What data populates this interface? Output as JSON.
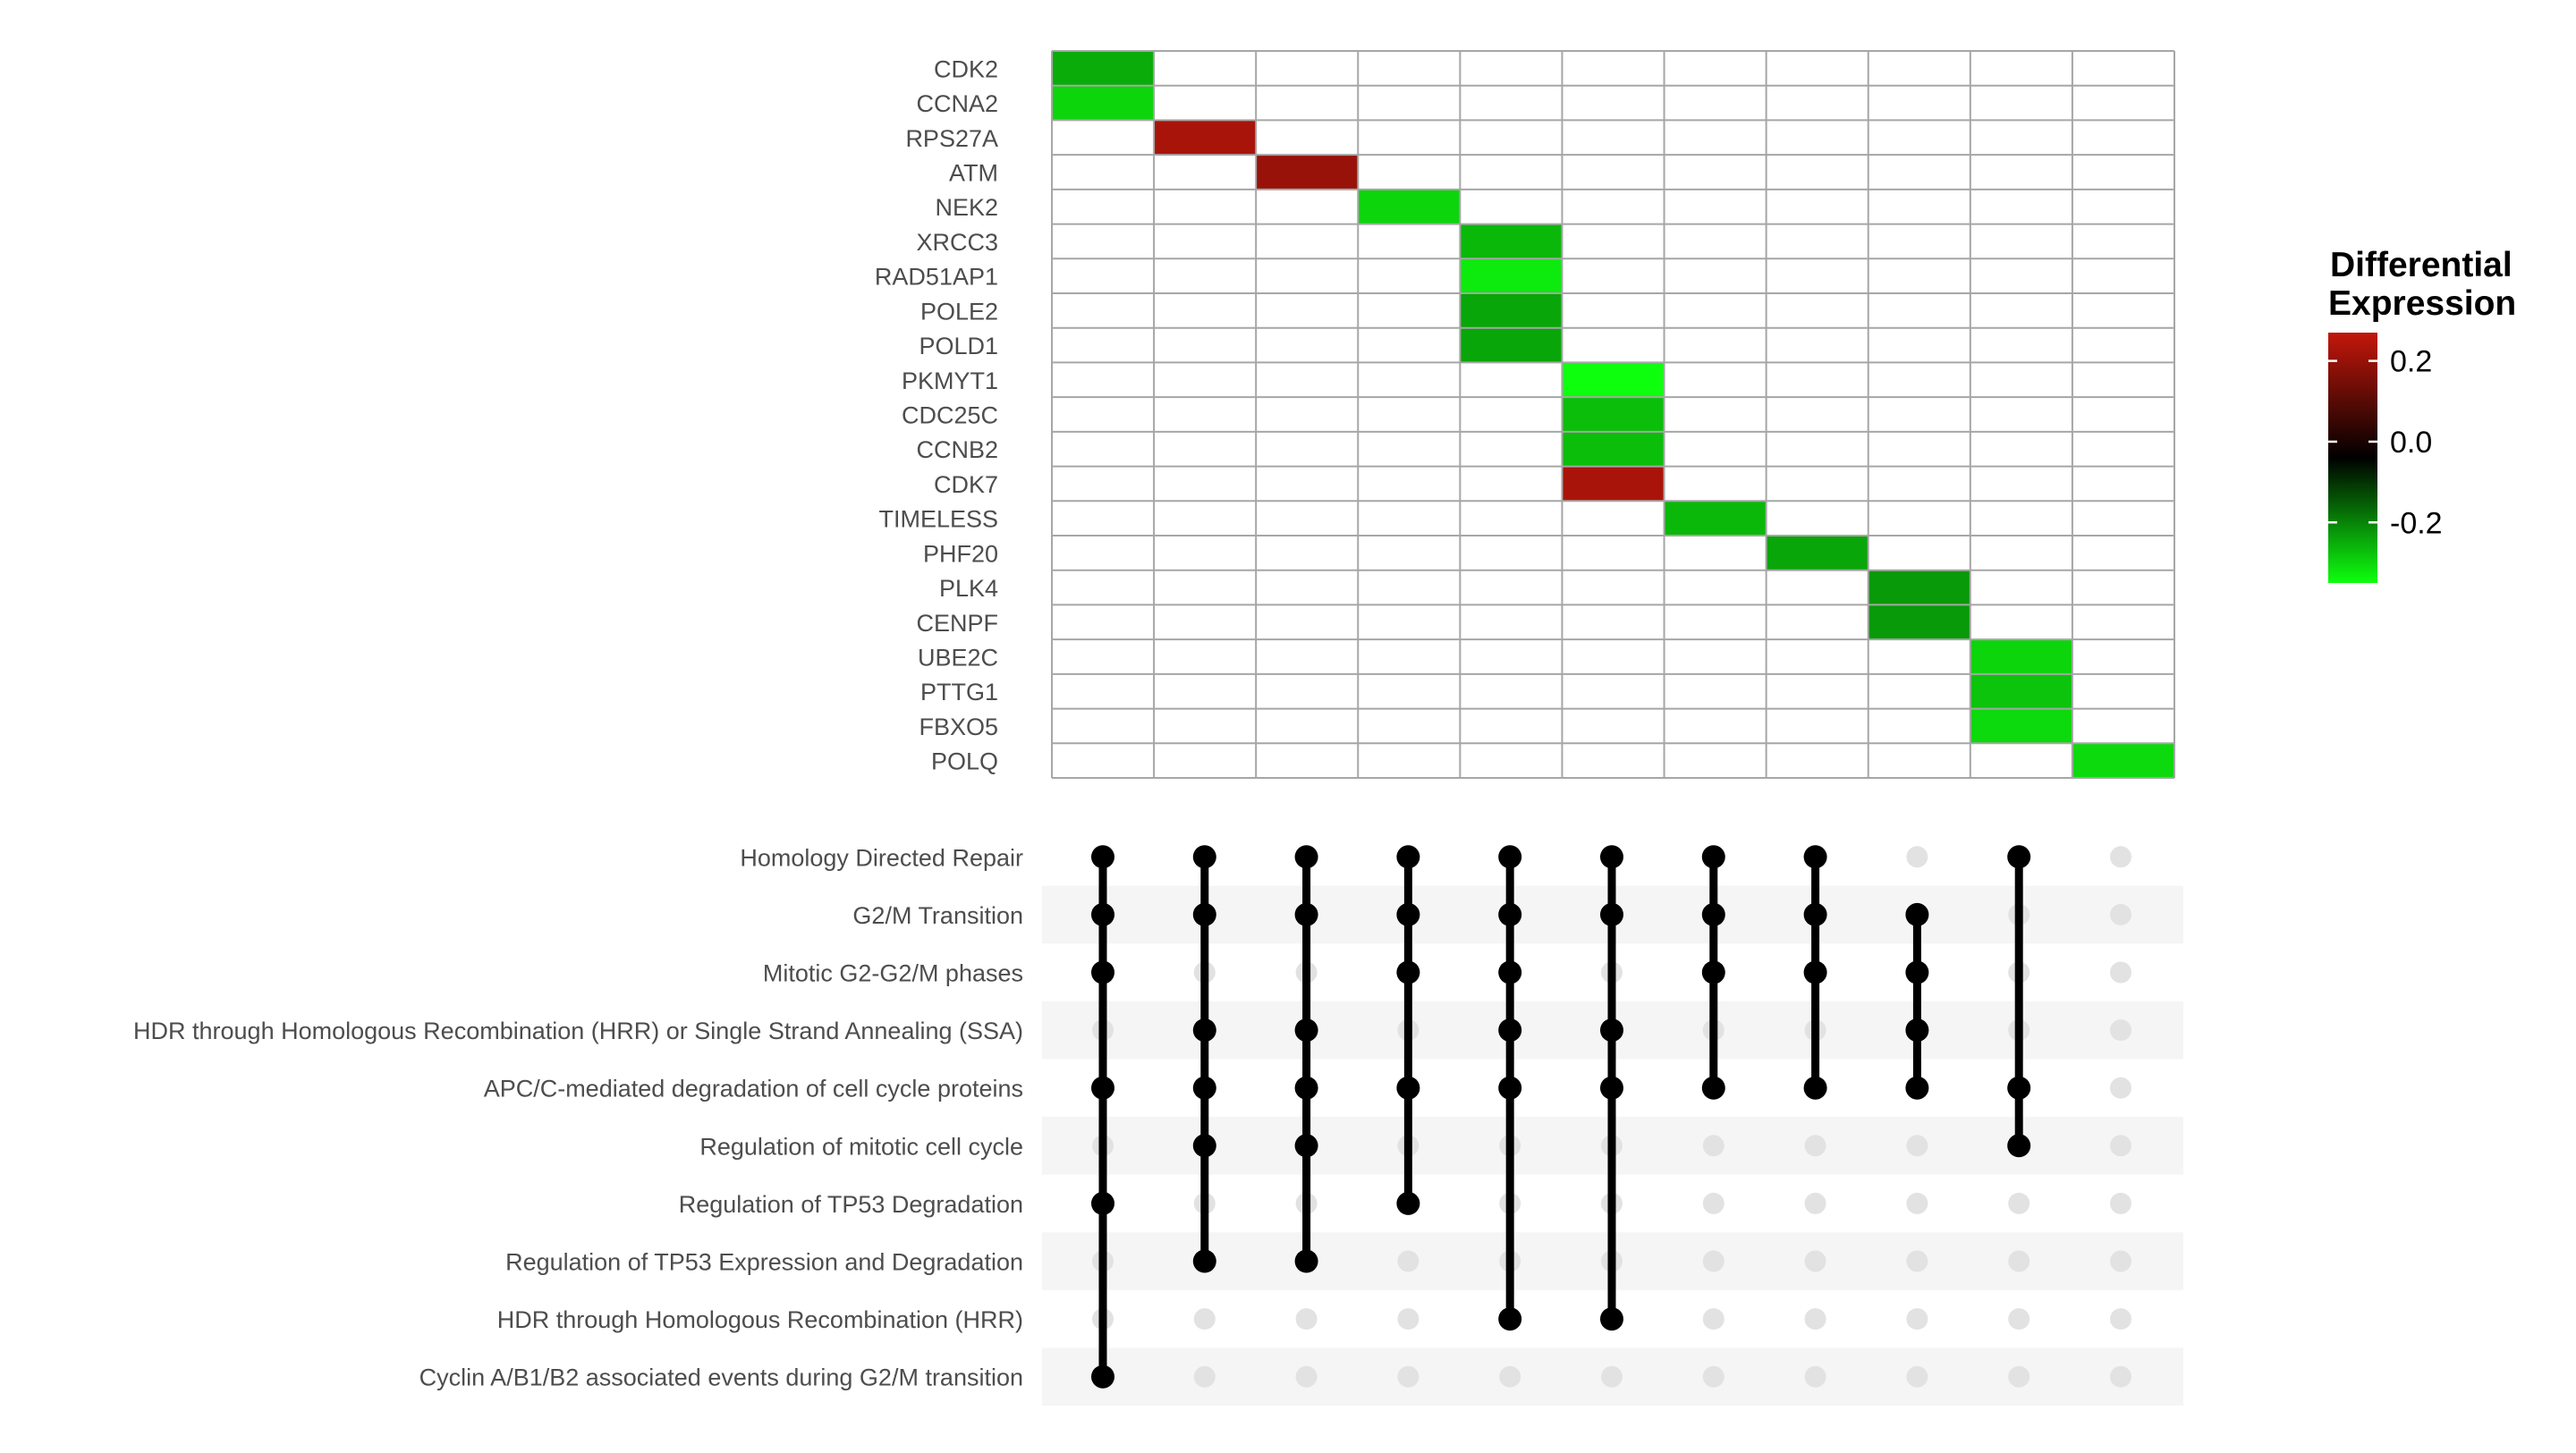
{
  "chart_data": [
    {
      "type": "heatmap",
      "genes": [
        "CDK2",
        "CCNA2",
        "RPS27A",
        "ATM",
        "NEK2",
        "XRCC3",
        "RAD51AP1",
        "POLE2",
        "POLD1",
        "PKMYT1",
        "CDC25C",
        "CCNB2",
        "CDK7",
        "TIMELESS",
        "PHF20",
        "PLK4",
        "CENPF",
        "UBE2C",
        "PTTG1",
        "FBXO5",
        "POLQ"
      ],
      "num_columns": 11,
      "cells": [
        {
          "gene": "CDK2",
          "column": 1,
          "value": -0.2
        },
        {
          "gene": "CCNA2",
          "column": 1,
          "value": -0.27
        },
        {
          "gene": "RPS27A",
          "column": 2,
          "value": 0.22
        },
        {
          "gene": "ATM",
          "column": 3,
          "value": 0.19
        },
        {
          "gene": "NEK2",
          "column": 4,
          "value": -0.27
        },
        {
          "gene": "XRCC3",
          "column": 5,
          "value": -0.22
        },
        {
          "gene": "RAD51AP1",
          "column": 5,
          "value": -0.31
        },
        {
          "gene": "POLE2",
          "column": 5,
          "value": -0.19
        },
        {
          "gene": "POLD1",
          "column": 5,
          "value": -0.19
        },
        {
          "gene": "PKMYT1",
          "column": 6,
          "value": -0.35
        },
        {
          "gene": "CDC25C",
          "column": 6,
          "value": -0.23
        },
        {
          "gene": "CCNB2",
          "column": 6,
          "value": -0.23
        },
        {
          "gene": "CDK7",
          "column": 6,
          "value": 0.22
        },
        {
          "gene": "TIMELESS",
          "column": 7,
          "value": -0.22
        },
        {
          "gene": "PHF20",
          "column": 8,
          "value": -0.19
        },
        {
          "gene": "PLK4",
          "column": 9,
          "value": -0.17
        },
        {
          "gene": "CENPF",
          "column": 9,
          "value": -0.17
        },
        {
          "gene": "UBE2C",
          "column": 10,
          "value": -0.27
        },
        {
          "gene": "PTTG1",
          "column": 10,
          "value": -0.24
        },
        {
          "gene": "FBXO5",
          "column": 10,
          "value": -0.28
        },
        {
          "gene": "POLQ",
          "column": 11,
          "value": -0.28
        }
      ],
      "legend": {
        "title_lines": [
          "Differential",
          "Expression"
        ],
        "ticks": [
          0.2,
          0.0,
          -0.2
        ],
        "tick_labels": [
          "0.2",
          "0.0",
          "-0.2"
        ],
        "range": [
          -0.35,
          0.27
        ],
        "colors": {
          "high": "#c3170b",
          "mid": "#000000",
          "low": "#0eff0e"
        }
      }
    },
    {
      "type": "upset-matrix",
      "pathways": [
        "Homology Directed Repair",
        "G2/M Transition",
        "Mitotic G2-G2/M phases",
        "HDR through Homologous Recombination (HRR) or Single Strand Annealing (SSA)",
        "APC/C-mediated degradation of cell cycle proteins",
        "Regulation of mitotic cell cycle",
        "Regulation of TP53 Degradation",
        "Regulation of TP53 Expression and Degradation",
        "HDR through Homologous Recombination (HRR)",
        "Cyclin A/B1/B2 associated events during G2/M transition"
      ],
      "membership": [
        [
          1,
          2,
          3,
          4,
          5,
          6,
          7,
          8,
          10
        ],
        [
          1,
          2,
          3,
          4,
          5,
          6,
          7,
          8,
          9
        ],
        [
          1,
          4,
          5,
          7,
          8,
          9
        ],
        [
          2,
          3,
          5,
          6,
          9
        ],
        [
          1,
          2,
          3,
          4,
          5,
          6,
          7,
          8,
          9,
          10
        ],
        [
          2,
          3,
          10
        ],
        [
          1,
          4
        ],
        [
          2,
          3
        ],
        [
          5,
          6
        ],
        [
          1
        ]
      ]
    }
  ],
  "colors": {
    "grid": "#a6a6a6",
    "dot_active": "#000000",
    "dot_inactive": "#e2e2e2",
    "stripe": "#f5f5f5",
    "label_text": "#4d4d4d"
  }
}
